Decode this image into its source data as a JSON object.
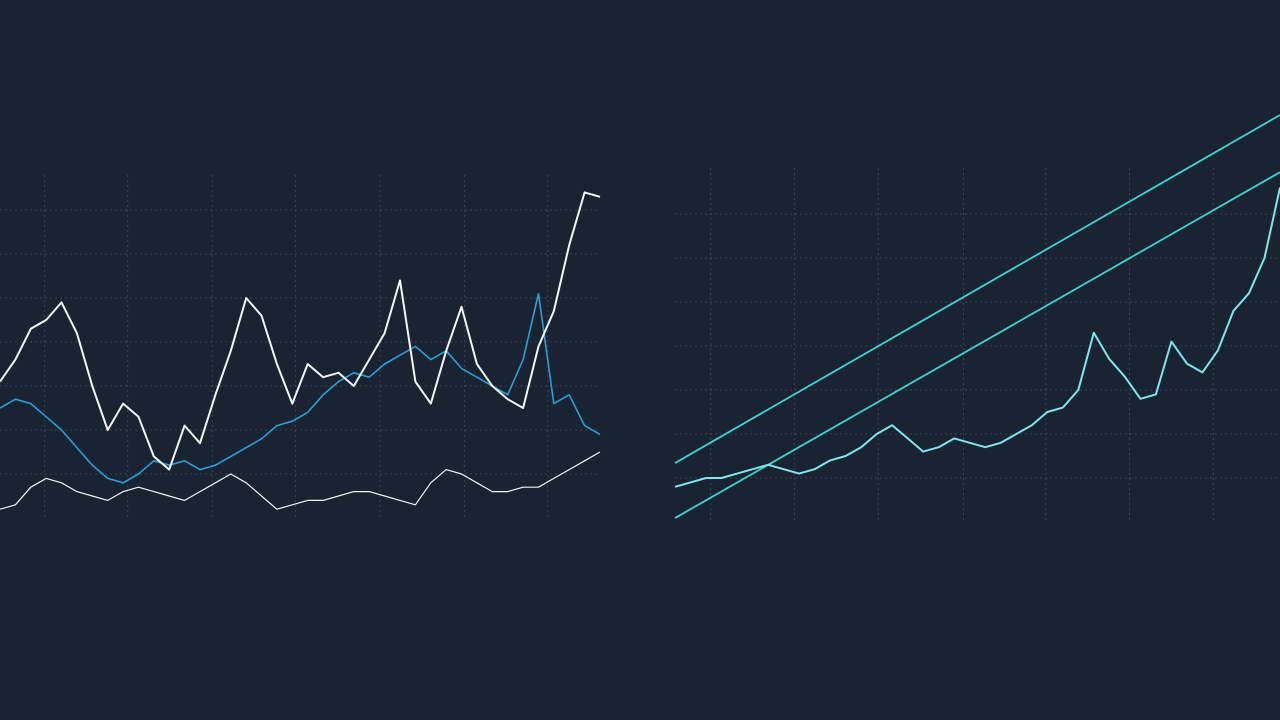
{
  "chart_data": [
    {
      "type": "line",
      "xlim": [
        0,
        39
      ],
      "xticks": [
        2.9,
        8.3,
        13.8,
        19.2,
        24.7,
        30.2,
        35.6
      ],
      "ylim": [
        0,
        8
      ],
      "yticks": [
        1,
        2,
        3,
        4,
        5,
        6,
        7
      ],
      "grid": true,
      "series": [
        {
          "color": "#2a9fd8",
          "width": 1.6,
          "values": [
            2.5,
            2.7,
            2.6,
            2.3,
            2.0,
            1.6,
            1.2,
            0.9,
            0.8,
            1.0,
            1.3,
            1.2,
            1.3,
            1.1,
            1.2,
            1.4,
            1.6,
            1.8,
            2.1,
            2.2,
            2.4,
            2.8,
            3.1,
            3.3,
            3.2,
            3.5,
            3.7,
            3.9,
            3.6,
            3.8,
            3.4,
            3.2,
            3.0,
            2.8,
            3.6,
            5.1,
            2.6,
            2.8,
            2.1,
            1.9
          ]
        },
        {
          "color": "#eef3f6",
          "width": 1.2,
          "values": [
            0.2,
            0.3,
            0.7,
            0.9,
            0.8,
            0.6,
            0.5,
            0.4,
            0.6,
            0.7,
            0.6,
            0.5,
            0.4,
            0.6,
            0.8,
            1.0,
            0.8,
            0.5,
            0.2,
            0.3,
            0.4,
            0.4,
            0.5,
            0.6,
            0.6,
            0.5,
            0.4,
            0.3,
            0.8,
            1.1,
            1.0,
            0.8,
            0.6,
            0.6,
            0.7,
            0.7,
            0.9,
            1.1,
            1.3,
            1.5
          ]
        },
        {
          "color": "#f2f6f8",
          "width": 2,
          "values": [
            3.1,
            3.6,
            4.3,
            4.5,
            4.9,
            4.2,
            3.0,
            2.0,
            2.6,
            2.3,
            1.4,
            1.1,
            2.1,
            1.7,
            2.8,
            3.8,
            5.0,
            4.6,
            3.5,
            2.6,
            3.5,
            3.2,
            3.3,
            3.0,
            3.6,
            4.2,
            5.4,
            3.1,
            2.6,
            3.8,
            4.8,
            3.5,
            3.0,
            2.7,
            2.5,
            3.9,
            4.7,
            6.2,
            7.4,
            7.3
          ]
        }
      ]
    },
    {
      "type": "line",
      "xlim": [
        0,
        39
      ],
      "xticks": [
        2.3,
        7.7,
        13.1,
        18.6,
        23.9,
        29.3,
        34.7
      ],
      "ylim": [
        0,
        8
      ],
      "yticks": [
        1,
        2,
        3,
        4,
        5,
        6,
        7
      ],
      "grid": true,
      "trendlines": [
        {
          "color": "#3fd4d0",
          "values": [
            1.34,
            9.25
          ]
        },
        {
          "color": "#3fd4d0",
          "values": [
            0.09,
            7.95
          ]
        }
      ],
      "series": [
        {
          "color": "#7fe6ea",
          "width": 2,
          "values": [
            0.8,
            0.9,
            1.0,
            1.0,
            1.1,
            1.2,
            1.3,
            1.2,
            1.1,
            1.2,
            1.4,
            1.5,
            1.7,
            2.0,
            2.2,
            1.9,
            1.6,
            1.7,
            1.9,
            1.8,
            1.7,
            1.8,
            2.0,
            2.2,
            2.5,
            2.6,
            3.0,
            4.3,
            3.7,
            3.3,
            2.8,
            2.9,
            4.1,
            3.6,
            3.4,
            3.9,
            4.8,
            5.2,
            6.0,
            7.6
          ]
        }
      ]
    }
  ]
}
